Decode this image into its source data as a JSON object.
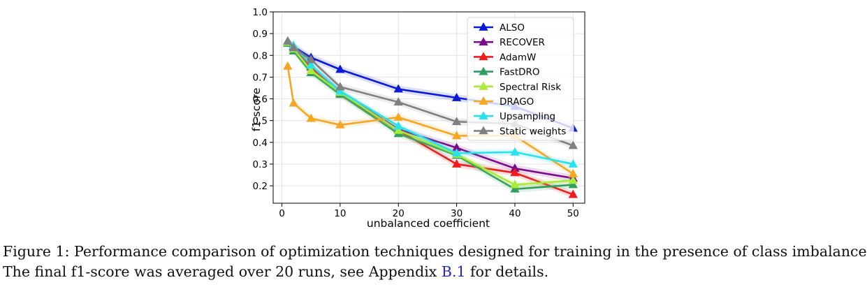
{
  "chart_data": {
    "type": "line",
    "xlabel": "unbalanced coefficient",
    "ylabel": "f1-score",
    "xlim": [
      -1.5,
      52.0
    ],
    "ylim": [
      0.12,
      1.0
    ],
    "xticks": [
      0,
      10,
      20,
      30,
      40,
      50
    ],
    "yticks": [
      0.2,
      0.3,
      0.4,
      0.5,
      0.6,
      0.7,
      0.8,
      0.9,
      1.0
    ],
    "xtick_labels": [
      "0",
      "10",
      "20",
      "30",
      "40",
      "50"
    ],
    "ytick_labels": [
      "0.2",
      "0.3",
      "0.4",
      "0.5",
      "0.6",
      "0.7",
      "0.8",
      "0.9",
      "1.0"
    ],
    "grid": true,
    "legend_position": "top-right",
    "series": [
      {
        "name": "ALSO",
        "color": "#0b1ad8",
        "x": [
          1,
          2,
          5,
          10,
          20,
          30,
          40,
          50
        ],
        "y": [
          0.865,
          0.84,
          0.79,
          0.735,
          0.645,
          0.605,
          0.565,
          0.465
        ]
      },
      {
        "name": "RECOVER",
        "color": "#7a0b8a",
        "x": [
          1,
          2,
          5,
          10,
          20,
          30,
          40,
          50
        ],
        "y": [
          0.86,
          0.83,
          0.75,
          0.63,
          0.46,
          0.375,
          0.28,
          0.235
        ]
      },
      {
        "name": "AdamW",
        "color": "#ee1c1c",
        "x": [
          1,
          2,
          5,
          10,
          20,
          30,
          40,
          50
        ],
        "y": [
          0.86,
          0.83,
          0.745,
          0.625,
          0.455,
          0.3,
          0.26,
          0.16
        ]
      },
      {
        "name": "FastDRO",
        "color": "#2f9e5f",
        "x": [
          1,
          2,
          5,
          10,
          20,
          30,
          40,
          50
        ],
        "y": [
          0.855,
          0.82,
          0.72,
          0.62,
          0.44,
          0.34,
          0.185,
          0.205
        ]
      },
      {
        "name": "Spectral Risk",
        "color": "#a8ec3a",
        "x": [
          1,
          2,
          5,
          10,
          20,
          30,
          40,
          50
        ],
        "y": [
          0.86,
          0.83,
          0.73,
          0.63,
          0.455,
          0.345,
          0.205,
          0.225
        ]
      },
      {
        "name": "DRAGO",
        "color": "#f5a623",
        "x": [
          1,
          2,
          5,
          10,
          20,
          30,
          40,
          50
        ],
        "y": [
          0.75,
          0.58,
          0.51,
          0.48,
          0.515,
          0.43,
          0.43,
          0.255
        ]
      },
      {
        "name": "Upsampling",
        "color": "#27e3ee",
        "x": [
          1,
          2,
          5,
          10,
          20,
          30,
          40,
          50
        ],
        "y": [
          0.865,
          0.845,
          0.755,
          0.635,
          0.475,
          0.35,
          0.355,
          0.3
        ]
      },
      {
        "name": "Static weights",
        "color": "#808080",
        "x": [
          1,
          2,
          5,
          10,
          20,
          30,
          40,
          50
        ],
        "y": [
          0.865,
          0.835,
          0.78,
          0.655,
          0.585,
          0.495,
          0.485,
          0.385
        ]
      }
    ]
  },
  "caption": {
    "line1": "Figure 1: Performance comparison of optimization techniques designed for training in the presence of class imbalance",
    "line2_before": "The final f1-score was averaged over 20 runs, see Appendix ",
    "line2_ref": "B.1",
    "line2_after": " for details."
  }
}
